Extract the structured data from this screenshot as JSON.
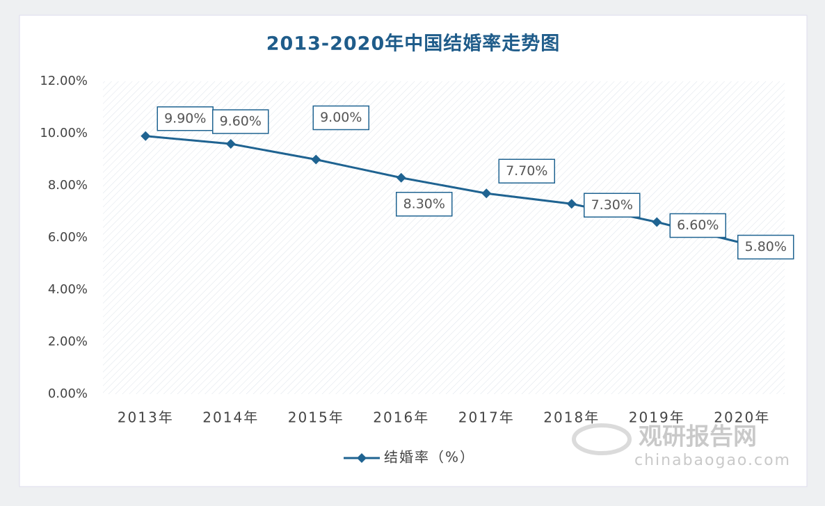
{
  "chart_data": {
    "type": "line",
    "title": "2013-2020年中国结婚率走势图",
    "categories": [
      "2013年",
      "2014年",
      "2015年",
      "2016年",
      "2017年",
      "2018年",
      "2019年",
      "2020年"
    ],
    "series": [
      {
        "name": "结婚率（%）",
        "color": "#1f6391",
        "values": [
          9.9,
          9.6,
          9.0,
          8.3,
          7.7,
          7.3,
          6.6,
          5.8
        ],
        "value_labels": [
          "9.90%",
          "9.60%",
          "9.00%",
          "8.30%",
          "7.70%",
          "7.30%",
          "6.60%",
          "5.80%"
        ]
      }
    ],
    "ylim": [
      0,
      12
    ],
    "yticks": [
      {
        "value": 0,
        "label": "0.00%"
      },
      {
        "value": 2,
        "label": "2.00%"
      },
      {
        "value": 4,
        "label": "4.00%"
      },
      {
        "value": 6,
        "label": "6.00%"
      },
      {
        "value": 8,
        "label": "8.00%"
      },
      {
        "value": 10,
        "label": "10.00%"
      },
      {
        "value": 12,
        "label": "12.00%"
      }
    ],
    "legend": "bottom",
    "watermark": {
      "name": "观研报告网",
      "url": "chinabaogao.com"
    }
  }
}
